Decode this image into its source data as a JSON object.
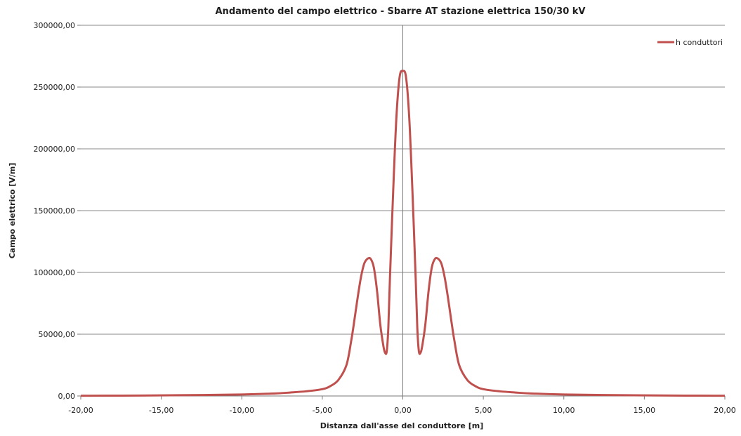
{
  "chart_data": {
    "type": "line",
    "title": "Andamento  del campo elettrico  - Sbarre AT stazione elettrica 150/30 kV",
    "xlabel": "Distanza dall'asse del conduttore [m]",
    "ylabel": "Campo elettrico [V/m]",
    "xlim": [
      -20,
      20
    ],
    "ylim": [
      0,
      300000
    ],
    "x_ticks": [
      -20,
      -15,
      -10,
      -5,
      0,
      5,
      10,
      15,
      20
    ],
    "x_tick_labels": [
      "-20,00",
      "-15,00",
      "-10,00",
      "-5,00",
      "0,00",
      "5,00",
      "10,00",
      "15,00",
      "20,00"
    ],
    "y_ticks": [
      0,
      50000,
      100000,
      150000,
      200000,
      250000,
      300000
    ],
    "y_tick_labels": [
      "0,00",
      "50000,00",
      "100000,00",
      "150000,00",
      "200000,00",
      "250000,00",
      "300000,00"
    ],
    "grid": "horizontal",
    "legend_position": "top-right",
    "series": [
      {
        "name": "h conduttori",
        "color": "#c0504d",
        "x": [
          -20,
          -17.5,
          -15,
          -12.5,
          -10,
          -8,
          -7,
          -6,
          -5,
          -4.5,
          -4,
          -3.5,
          -3.2,
          -3,
          -2.8,
          -2.6,
          -2.4,
          -2.2,
          -2,
          -1.8,
          -1.6,
          -1.4,
          -1.2,
          -1.1,
          -1,
          -0.9,
          -0.8,
          -0.6,
          -0.4,
          -0.2,
          0,
          0.2,
          0.4,
          0.6,
          0.8,
          0.9,
          1,
          1.1,
          1.2,
          1.4,
          1.6,
          1.8,
          2,
          2.2,
          2.4,
          2.6,
          2.8,
          3,
          3.2,
          3.5,
          4,
          4.5,
          5,
          6,
          7,
          8,
          10,
          12.5,
          15,
          17.5,
          20
        ],
        "values": [
          200,
          300,
          500,
          800,
          1200,
          2000,
          2800,
          3800,
          5500,
          8000,
          13000,
          25000,
          45000,
          62000,
          80000,
          96000,
          107000,
          111000,
          111000,
          104000,
          85000,
          58000,
          40000,
          35000,
          36000,
          55000,
          95000,
          165000,
          225000,
          258000,
          263000,
          258000,
          225000,
          165000,
          95000,
          55000,
          36000,
          35000,
          40000,
          58000,
          85000,
          104000,
          111000,
          111000,
          107000,
          96000,
          80000,
          62000,
          45000,
          25000,
          13000,
          8000,
          5500,
          3800,
          2800,
          2000,
          1200,
          800,
          500,
          300,
          200
        ]
      }
    ]
  }
}
